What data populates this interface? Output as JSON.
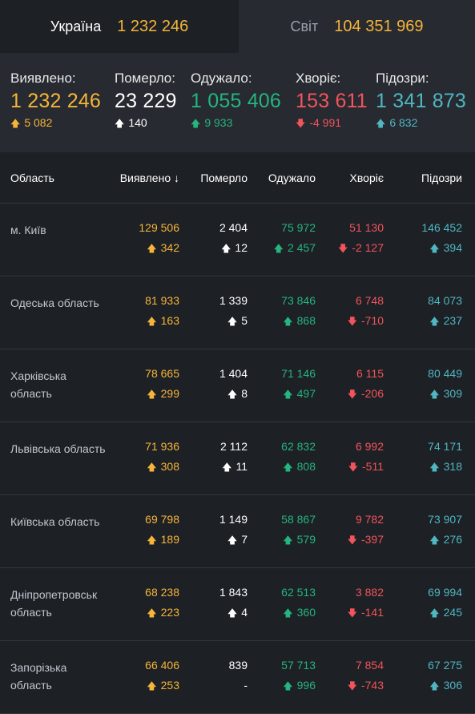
{
  "tabs": [
    {
      "label": "Україна",
      "value": "1 232 246"
    },
    {
      "label": "Світ",
      "value": "104 351 969"
    }
  ],
  "summary": [
    {
      "title": "Виявлено:",
      "value": "1 232 246",
      "delta": "5 082",
      "dir": "up",
      "color": "yellow"
    },
    {
      "title": "Померло:",
      "value": "23 229",
      "delta": "140",
      "dir": "up",
      "color": "white"
    },
    {
      "title": "Одужало:",
      "value": "1 055 406",
      "delta": "9 933",
      "dir": "up",
      "color": "green"
    },
    {
      "title": "Хворіє:",
      "value": "153 611",
      "delta": "-4 991",
      "dir": "down",
      "color": "red"
    },
    {
      "title": "Підозри:",
      "value": "1 341 873",
      "delta": "6 832",
      "dir": "up",
      "color": "cyan"
    }
  ],
  "table": {
    "headers": {
      "region": "Область",
      "detected": "Виявлено",
      "deaths": "Померло",
      "recovered": "Одужало",
      "sick": "Хворіє",
      "suspected": "Підозри"
    },
    "rows": [
      {
        "region": "м. Київ",
        "detected": "129 506",
        "detected_d": "342",
        "deaths": "2 404",
        "deaths_d": "12",
        "recovered": "75 972",
        "recovered_d": "2 457",
        "sick": "51 130",
        "sick_d": "-2 127",
        "suspected": "146 452",
        "suspected_d": "394"
      },
      {
        "region": "Одеська область",
        "detected": "81 933",
        "detected_d": "163",
        "deaths": "1 339",
        "deaths_d": "5",
        "recovered": "73 846",
        "recovered_d": "868",
        "sick": "6 748",
        "sick_d": "-710",
        "suspected": "84 073",
        "suspected_d": "237"
      },
      {
        "region": "Харківська область",
        "detected": "78 665",
        "detected_d": "299",
        "deaths": "1 404",
        "deaths_d": "8",
        "recovered": "71 146",
        "recovered_d": "497",
        "sick": "6 115",
        "sick_d": "-206",
        "suspected": "80 449",
        "suspected_d": "309"
      },
      {
        "region": "Львівська область",
        "detected": "71 936",
        "detected_d": "308",
        "deaths": "2 112",
        "deaths_d": "11",
        "recovered": "62 832",
        "recovered_d": "808",
        "sick": "6 992",
        "sick_d": "-511",
        "suspected": "74 171",
        "suspected_d": "318"
      },
      {
        "region": "Київська область",
        "detected": "69 798",
        "detected_d": "189",
        "deaths": "1 149",
        "deaths_d": "7",
        "recovered": "58 867",
        "recovered_d": "579",
        "sick": "9 782",
        "sick_d": "-397",
        "suspected": "73 907",
        "suspected_d": "276"
      },
      {
        "region": "Дніпропетровськ область",
        "detected": "68 238",
        "detected_d": "223",
        "deaths": "1 843",
        "deaths_d": "4",
        "recovered": "62 513",
        "recovered_d": "360",
        "sick": "3 882",
        "sick_d": "-141",
        "suspected": "69 994",
        "suspected_d": "245"
      },
      {
        "region": "Запорізька область",
        "detected": "66 406",
        "detected_d": "253",
        "deaths": "839",
        "deaths_d": "-",
        "recovered": "57 713",
        "recovered_d": "996",
        "sick": "7 854",
        "sick_d": "-743",
        "suspected": "67 275",
        "suspected_d": "306"
      }
    ]
  },
  "colors": {
    "yellow": "#f6b53a",
    "white": "#ffffff",
    "green": "#25b57e",
    "red": "#f2545b",
    "cyan": "#4fb6c2",
    "background": "#1d2025",
    "panel": "#272a30"
  },
  "icons": {
    "up": "arrow-up-icon",
    "down": "arrow-down-icon",
    "sort": "sort-down-icon"
  }
}
